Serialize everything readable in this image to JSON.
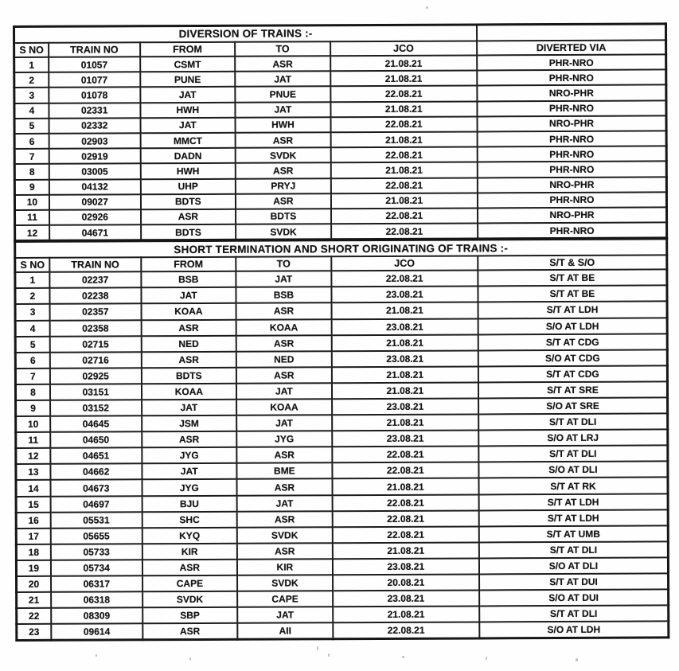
{
  "colors": {
    "border": "#1c1c1c",
    "text": "#141414",
    "paper": "#fefefe"
  },
  "diversion_table": {
    "title": "DIVERSION OF TRAINS :-",
    "headers": [
      "S NO",
      "TRAIN NO",
      "FROM",
      "TO",
      "JCO",
      "DIVERTED VIA"
    ],
    "rows": [
      [
        "1",
        "01057",
        "CSMT",
        "ASR",
        "21.08.21",
        "PHR-NRO"
      ],
      [
        "2",
        "01077",
        "PUNE",
        "JAT",
        "21.08.21",
        "PHR-NRO"
      ],
      [
        "3",
        "01078",
        "JAT",
        "PNUE",
        "22.08.21",
        "NRO-PHR"
      ],
      [
        "4",
        "02331",
        "HWH",
        "JAT",
        "21.08.21",
        "PHR-NRO"
      ],
      [
        "5",
        "02332",
        "JAT",
        "HWH",
        "22.08.21",
        "NRO-PHR"
      ],
      [
        "6",
        "02903",
        "MMCT",
        "ASR",
        "21.08.21",
        "PHR-NRO"
      ],
      [
        "7",
        "02919",
        "DADN",
        "SVDK",
        "22.08.21",
        "PHR-NRO"
      ],
      [
        "8",
        "03005",
        "HWH",
        "ASR",
        "21.08.21",
        "PHR-NRO"
      ],
      [
        "9",
        "04132",
        "UHP",
        "PRYJ",
        "22.08.21",
        "NRO-PHR"
      ],
      [
        "10",
        "09027",
        "BDTS",
        "ASR",
        "21.08.21",
        "PHR-NRO"
      ],
      [
        "11",
        "02926",
        "ASR",
        "BDTS",
        "22.08.21",
        "NRO-PHR"
      ],
      [
        "12",
        "04671",
        "BDTS",
        "SVDK",
        "22.08.21",
        "PHR-NRO"
      ]
    ]
  },
  "short_table": {
    "title": "SHORT TERMINATION  AND SHORT ORIGINATING OF TRAINS :-",
    "headers": [
      "S NO",
      "TRAIN NO",
      "FROM",
      "TO",
      "JCO",
      "S/T & S/O"
    ],
    "rows": [
      [
        "1",
        "02237",
        "BSB",
        "JAT",
        "22.08.21",
        "S/T AT BE"
      ],
      [
        "2",
        "02238",
        "JAT",
        "BSB",
        "23.08.21",
        "S/T AT BE"
      ],
      [
        "3",
        "02357",
        "KOAA",
        "ASR",
        "21.08.21",
        "S/T AT LDH"
      ],
      [
        "4",
        "02358",
        "ASR",
        "KOAA",
        "23.08.21",
        "S/O AT LDH"
      ],
      [
        "5",
        "02715",
        "NED",
        "ASR",
        "21.08.21",
        "S/T AT CDG"
      ],
      [
        "6",
        "02716",
        "ASR",
        "NED",
        "23.08.21",
        "S/O AT CDG"
      ],
      [
        "7",
        "02925",
        "BDTS",
        "ASR",
        "21.08.21",
        "S/T AT CDG"
      ],
      [
        "8",
        "03151",
        "KOAA",
        "JAT",
        "21.08.21",
        "S/T AT SRE"
      ],
      [
        "9",
        "03152",
        "JAT",
        "KOAA",
        "23.08.21",
        "S/O AT SRE"
      ],
      [
        "10",
        "04645",
        "JSM",
        "JAT",
        "21.08.21",
        "S/T AT DLI"
      ],
      [
        "11",
        "04650",
        "ASR",
        "JYG",
        "23.08.21",
        "S/O AT LRJ"
      ],
      [
        "12",
        "04651",
        "JYG",
        "ASR",
        "22.08.21",
        "S/T AT DLI"
      ],
      [
        "13",
        "04662",
        "JAT",
        "BME",
        "22.08.21",
        "S/O AT DLI"
      ],
      [
        "14",
        "04673",
        "JYG",
        "ASR",
        "21.08.21",
        "S/T AT RK"
      ],
      [
        "15",
        "04697",
        "BJU",
        "JAT",
        "22.08.21",
        "S/T AT LDH"
      ],
      [
        "16",
        "05531",
        "SHC",
        "ASR",
        "22.08.21",
        "S/T AT LDH"
      ],
      [
        "17",
        "05655",
        "KYQ",
        "SVDK",
        "22.08.21",
        "S/T AT UMB"
      ],
      [
        "18",
        "05733",
        "KIR",
        "ASR",
        "21.08.21",
        "S/T AT DLI"
      ],
      [
        "19",
        "05734",
        "ASR",
        "KIR",
        "23.08.21",
        "S/O AT DLI"
      ],
      [
        "20",
        "06317",
        "CAPE",
        "SVDK",
        "20.08.21",
        "S/T AT DUI"
      ],
      [
        "21",
        "06318",
        "SVDK",
        "CAPE",
        "23.08.21",
        "S/O AT DUI"
      ],
      [
        "22",
        "08309",
        "SBP",
        "JAT",
        "21.08.21",
        "S/T AT DLI"
      ],
      [
        "23",
        "09614",
        "ASR",
        "AII",
        "22.08.21",
        "S/O AT LDH"
      ]
    ]
  }
}
